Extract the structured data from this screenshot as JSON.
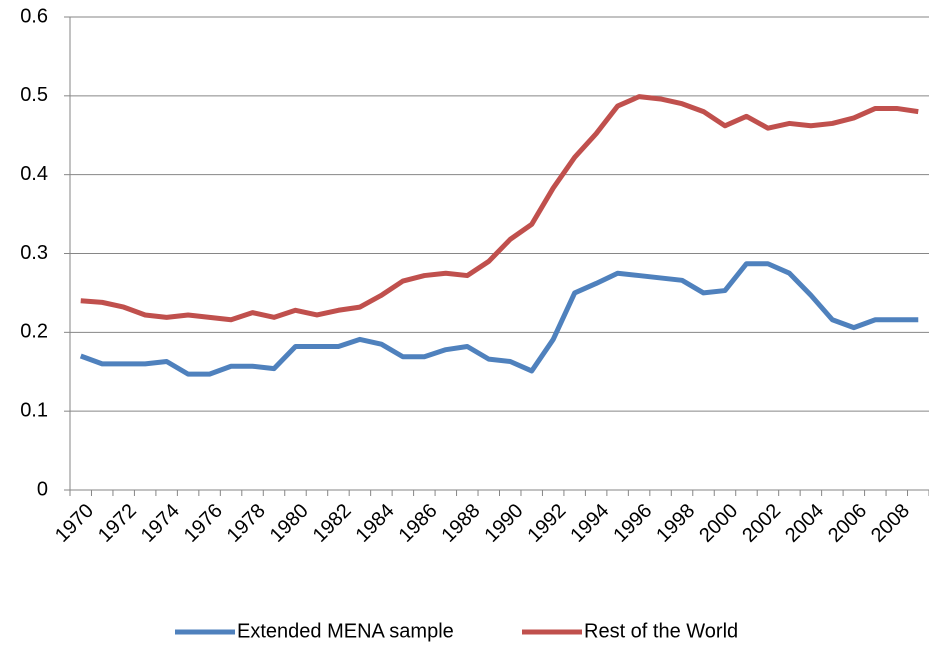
{
  "chart_data": {
    "type": "line",
    "categories": [
      "1970",
      null,
      "1972",
      null,
      "1974",
      null,
      "1976",
      null,
      "1978",
      null,
      "1980",
      null,
      "1982",
      null,
      "1984",
      null,
      "1986",
      null,
      "1988",
      null,
      "1990",
      null,
      "1992",
      null,
      "1994",
      null,
      "1996",
      null,
      "1998",
      null,
      "2000",
      null,
      "2002",
      null,
      "2004",
      null,
      "2006",
      null,
      "2008",
      null
    ],
    "series": [
      {
        "name": "Extended MENA sample",
        "color": "#4f81bd",
        "values": [
          0.17,
          0.16,
          0.16,
          0.16,
          0.163,
          0.147,
          0.147,
          0.157,
          0.157,
          0.154,
          0.182,
          0.182,
          0.182,
          0.191,
          0.185,
          0.169,
          0.169,
          0.178,
          0.182,
          0.166,
          0.163,
          0.151,
          0.191,
          0.25,
          0.262,
          0.275,
          0.272,
          0.269,
          0.266,
          0.25,
          0.253,
          0.287,
          0.287,
          0.275,
          0.247,
          0.216,
          0.206,
          0.216,
          0.216,
          0.216
        ]
      },
      {
        "name": "Rest of the World",
        "color": "#c0504d",
        "values": [
          0.24,
          0.238,
          0.232,
          0.222,
          0.219,
          0.222,
          0.219,
          0.216,
          0.225,
          0.219,
          0.228,
          0.222,
          0.228,
          0.232,
          0.247,
          0.265,
          0.272,
          0.275,
          0.272,
          0.29,
          0.318,
          0.337,
          0.383,
          0.422,
          0.452,
          0.487,
          0.499,
          0.496,
          0.49,
          0.48,
          0.462,
          0.474,
          0.459,
          0.465,
          0.462,
          0.465,
          0.472,
          0.484,
          0.484,
          0.48
        ]
      }
    ],
    "ylim": [
      0,
      0.6
    ],
    "yticks": [
      0,
      0.1,
      0.2,
      0.3,
      0.4,
      0.5,
      0.6
    ],
    "grid": true,
    "legend": "bottom"
  }
}
